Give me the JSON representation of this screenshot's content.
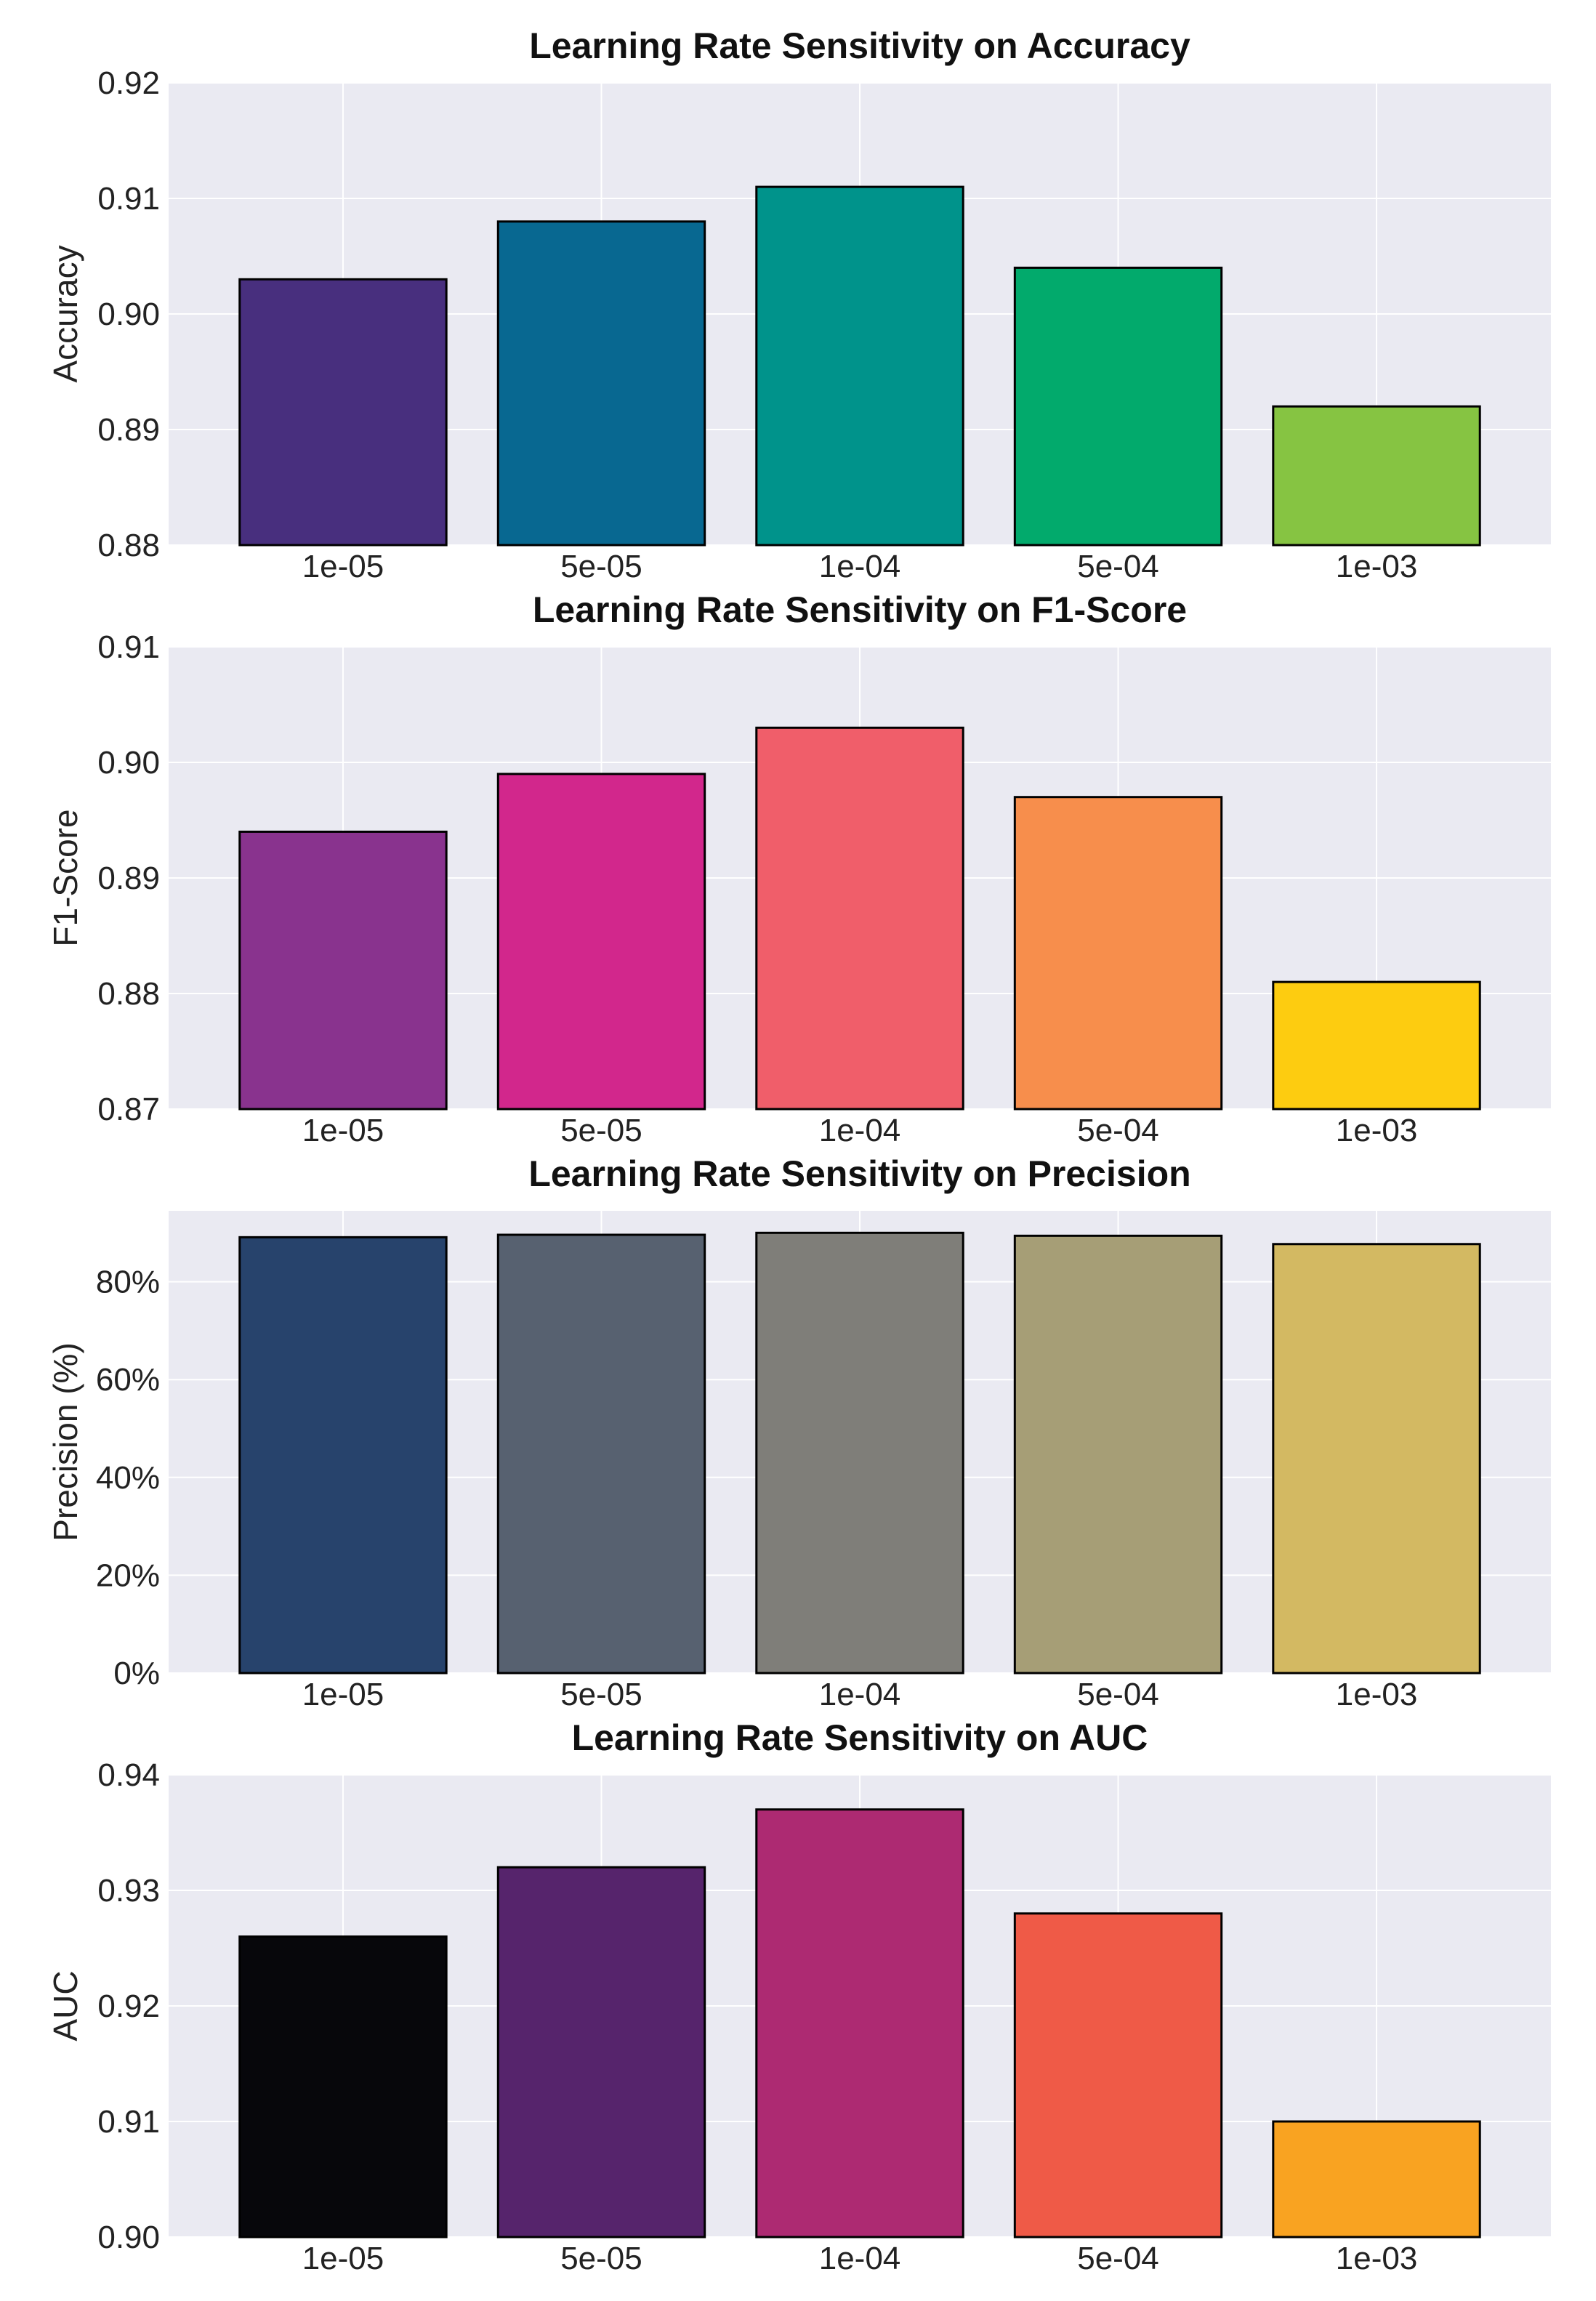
{
  "chart_data": [
    {
      "type": "bar",
      "title": "Learning Rate Sensitivity on Accuracy",
      "ylabel": "Accuracy",
      "categories": [
        "1e-05",
        "5e-05",
        "1e-04",
        "5e-04",
        "1e-03"
      ],
      "values": [
        0.903,
        0.908,
        0.911,
        0.904,
        0.892
      ],
      "ylim": [
        0.88,
        0.92
      ],
      "yticks": [
        0.88,
        0.89,
        0.9,
        0.91,
        0.92
      ],
      "ytick_labels": [
        "0.88",
        "0.89",
        "0.90",
        "0.91",
        "0.92"
      ],
      "colors": [
        "#482f7e",
        "#086891",
        "#00938b",
        "#02aa6c",
        "#86c442"
      ],
      "grid": true
    },
    {
      "type": "bar",
      "title": "Learning Rate Sensitivity on F1-Score",
      "ylabel": "F1-Score",
      "categories": [
        "1e-05",
        "5e-05",
        "1e-04",
        "5e-04",
        "1e-03"
      ],
      "values": [
        0.894,
        0.899,
        0.903,
        0.897,
        0.881
      ],
      "ylim": [
        0.87,
        0.91
      ],
      "yticks": [
        0.87,
        0.88,
        0.89,
        0.9,
        0.91
      ],
      "ytick_labels": [
        "0.87",
        "0.88",
        "0.89",
        "0.90",
        "0.91"
      ],
      "colors": [
        "#89338e",
        "#d2278c",
        "#f05e6a",
        "#f78e4c",
        "#fdcc10"
      ],
      "grid": true
    },
    {
      "type": "bar",
      "title": "Learning Rate Sensitivity on Precision",
      "ylabel": "Precision (%)",
      "categories": [
        "1e-05",
        "5e-05",
        "1e-04",
        "5e-04",
        "1e-03"
      ],
      "values": [
        89.1,
        89.6,
        90.0,
        89.4,
        87.7
      ],
      "ylim": [
        0,
        94.5
      ],
      "yticks": [
        0,
        20,
        40,
        60,
        80
      ],
      "ytick_labels": [
        "0%",
        "20%",
        "40%",
        "60%",
        "80%"
      ],
      "colors": [
        "#27436c",
        "#576170",
        "#7f7e79",
        "#a69e76",
        "#d3b962"
      ],
      "grid": true
    },
    {
      "type": "bar",
      "title": "Learning Rate Sensitivity on AUC",
      "ylabel": "AUC",
      "categories": [
        "1e-05",
        "5e-05",
        "1e-04",
        "5e-04",
        "1e-03"
      ],
      "values": [
        0.926,
        0.932,
        0.937,
        0.928,
        0.91
      ],
      "ylim": [
        0.9,
        0.94
      ],
      "yticks": [
        0.9,
        0.91,
        0.92,
        0.93,
        0.94
      ],
      "ytick_labels": [
        "0.90",
        "0.91",
        "0.92",
        "0.93",
        "0.94"
      ],
      "colors": [
        "#07070b",
        "#56246c",
        "#ad2a72",
        "#ef5a47",
        "#f9a321"
      ],
      "grid": true
    }
  ]
}
